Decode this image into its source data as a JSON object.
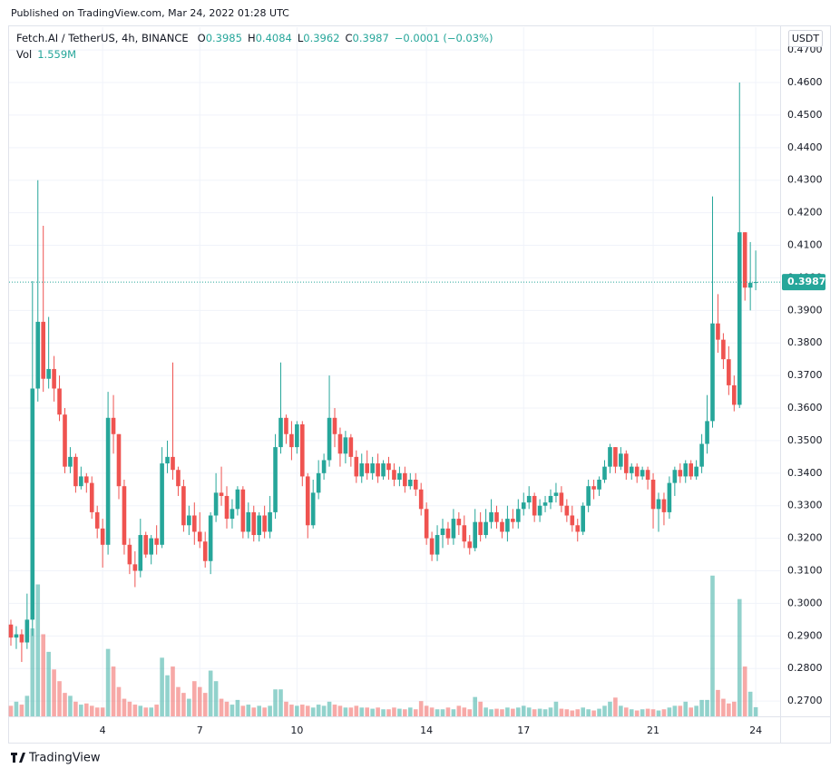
{
  "header": {
    "published": "Published on TradingView.com, Mar 24, 2022 01:28 UTC",
    "symbol": "Fetch.AI / TetherUS, 4h, BINANCE",
    "ohlc": [
      {
        "key": "O",
        "value": "0.3985"
      },
      {
        "key": "H",
        "value": "0.4084"
      },
      {
        "key": "L",
        "value": "0.3962"
      },
      {
        "key": "C",
        "value": "0.3987"
      }
    ],
    "change": "−0.0001 (−0.03%)",
    "vol_key": "Vol",
    "vol_label": "1.559M",
    "currency": "USDT",
    "logo": "TradingView"
  },
  "chart_data": {
    "type": "candlestick",
    "up_color": "#26a69a",
    "down_color": "#ef5350",
    "grid": true,
    "ylim": [
      0.2653,
      0.477
    ],
    "yticks": [
      {
        "value": 0.27,
        "label": "0.2700"
      },
      {
        "value": 0.28,
        "label": "0.2800"
      },
      {
        "value": 0.29,
        "label": "0.2900"
      },
      {
        "value": 0.3,
        "label": "0.3000"
      },
      {
        "value": 0.31,
        "label": "0.3100"
      },
      {
        "value": 0.32,
        "label": "0.3200"
      },
      {
        "value": 0.33,
        "label": "0.3300"
      },
      {
        "value": 0.34,
        "label": "0.3400"
      },
      {
        "value": 0.35,
        "label": "0.3500"
      },
      {
        "value": 0.36,
        "label": "0.3600"
      },
      {
        "value": 0.37,
        "label": "0.3700"
      },
      {
        "value": 0.38,
        "label": "0.3800"
      },
      {
        "value": 0.39,
        "label": "0.3900"
      },
      {
        "value": 0.4,
        "label": "0.4000"
      },
      {
        "value": 0.41,
        "label": "0.4100"
      },
      {
        "value": 0.42,
        "label": "0.4200"
      },
      {
        "value": 0.43,
        "label": "0.4300"
      },
      {
        "value": 0.44,
        "label": "0.4400"
      },
      {
        "value": 0.45,
        "label": "0.4500"
      },
      {
        "value": 0.46,
        "label": "0.4600"
      },
      {
        "value": 0.47,
        "label": "0.4700"
      }
    ],
    "vlim": [
      0,
      30
    ],
    "last_price": {
      "value": 0.3987,
      "label": "0.3987"
    },
    "categories": [
      null,
      null,
      null,
      null,
      null,
      null,
      null,
      null,
      null,
      null,
      null,
      null,
      null,
      null,
      null,
      null,
      null,
      "4",
      null,
      null,
      null,
      null,
      null,
      null,
      null,
      null,
      null,
      null,
      null,
      null,
      null,
      null,
      null,
      null,
      null,
      "7",
      null,
      null,
      null,
      null,
      null,
      null,
      null,
      null,
      null,
      null,
      null,
      null,
      null,
      null,
      null,
      null,
      null,
      "10",
      null,
      null,
      null,
      null,
      null,
      null,
      null,
      null,
      null,
      null,
      null,
      null,
      null,
      null,
      null,
      null,
      null,
      null,
      null,
      null,
      null,
      null,
      null,
      "14",
      null,
      null,
      null,
      null,
      null,
      null,
      null,
      null,
      null,
      null,
      null,
      null,
      null,
      null,
      null,
      null,
      null,
      "17",
      null,
      null,
      null,
      null,
      null,
      null,
      null,
      null,
      null,
      null,
      null,
      null,
      null,
      null,
      null,
      null,
      null,
      null,
      null,
      null,
      null,
      null,
      null,
      "21",
      null,
      null,
      null,
      null,
      null,
      null,
      null,
      null,
      null,
      null,
      null,
      null,
      null,
      null,
      null,
      null,
      null,
      null,
      "24"
    ],
    "open": [
      0.2935,
      0.2895,
      0.2905,
      0.288,
      0.295,
      0.366,
      0.3865,
      0.369,
      0.372,
      0.366,
      0.358,
      0.342,
      0.345,
      0.336,
      0.339,
      0.337,
      0.328,
      0.323,
      0.318,
      0.357,
      0.352,
      0.336,
      0.318,
      0.312,
      0.31,
      0.321,
      0.315,
      0.32,
      0.318,
      0.343,
      0.345,
      0.341,
      0.336,
      0.324,
      0.327,
      0.322,
      0.319,
      0.313,
      0.327,
      0.334,
      0.333,
      0.326,
      0.329,
      0.335,
      0.322,
      0.328,
      0.321,
      0.327,
      0.322,
      0.328,
      0.348,
      0.357,
      0.352,
      0.348,
      0.355,
      0.339,
      0.324,
      0.334,
      0.34,
      0.344,
      0.357,
      0.352,
      0.346,
      0.351,
      0.345,
      0.339,
      0.343,
      0.34,
      0.343,
      0.339,
      0.343,
      0.341,
      0.338,
      0.34,
      0.336,
      0.338,
      0.335,
      0.329,
      0.32,
      0.315,
      0.321,
      0.323,
      0.32,
      0.326,
      0.324,
      0.319,
      0.317,
      0.325,
      0.321,
      0.325,
      0.328,
      0.325,
      0.322,
      0.326,
      0.325,
      0.329,
      0.331,
      0.333,
      0.327,
      0.33,
      0.331,
      0.333,
      0.334,
      0.33,
      0.327,
      0.324,
      0.322,
      0.33,
      0.336,
      0.335,
      0.338,
      0.342,
      0.348,
      0.342,
      0.346,
      0.34,
      0.342,
      0.339,
      0.341,
      0.338,
      0.329,
      0.332,
      0.328,
      0.337,
      0.341,
      0.339,
      0.343,
      0.339,
      0.342,
      0.349,
      0.356,
      0.386,
      0.381,
      0.375,
      0.367,
      0.361,
      0.414,
      0.397,
      0.3985
    ],
    "high": [
      0.295,
      0.293,
      0.292,
      0.303,
      0.399,
      0.43,
      0.416,
      0.388,
      0.376,
      0.37,
      0.36,
      0.348,
      0.346,
      0.342,
      0.34,
      0.339,
      0.33,
      0.326,
      0.365,
      0.364,
      0.352,
      0.338,
      0.32,
      0.316,
      0.326,
      0.322,
      0.321,
      0.324,
      0.348,
      0.35,
      0.374,
      0.342,
      0.338,
      0.33,
      0.331,
      0.328,
      0.322,
      0.328,
      0.34,
      0.342,
      0.336,
      0.332,
      0.336,
      0.336,
      0.331,
      0.33,
      0.328,
      0.33,
      0.333,
      0.352,
      0.374,
      0.358,
      0.356,
      0.356,
      0.356,
      0.34,
      0.338,
      0.344,
      0.346,
      0.37,
      0.36,
      0.354,
      0.353,
      0.352,
      0.347,
      0.346,
      0.347,
      0.345,
      0.346,
      0.344,
      0.345,
      0.343,
      0.342,
      0.342,
      0.34,
      0.34,
      0.337,
      0.331,
      0.322,
      0.324,
      0.326,
      0.325,
      0.329,
      0.328,
      0.327,
      0.321,
      0.329,
      0.328,
      0.329,
      0.332,
      0.33,
      0.326,
      0.33,
      0.329,
      0.332,
      0.334,
      0.336,
      0.334,
      0.332,
      0.333,
      0.335,
      0.337,
      0.336,
      0.332,
      0.33,
      0.326,
      0.331,
      0.338,
      0.338,
      0.339,
      0.344,
      0.349,
      0.348,
      0.348,
      0.347,
      0.343,
      0.343,
      0.342,
      0.342,
      0.34,
      0.334,
      0.334,
      0.339,
      0.342,
      0.343,
      0.344,
      0.344,
      0.344,
      0.352,
      0.364,
      0.425,
      0.395,
      0.383,
      0.379,
      0.37,
      0.46,
      0.414,
      0.411,
      0.4084
    ],
    "low": [
      0.287,
      0.286,
      0.282,
      0.286,
      0.29,
      0.362,
      0.365,
      0.366,
      0.362,
      0.356,
      0.34,
      0.34,
      0.334,
      0.335,
      0.334,
      0.326,
      0.32,
      0.311,
      0.315,
      0.346,
      0.332,
      0.315,
      0.309,
      0.305,
      0.308,
      0.314,
      0.312,
      0.315,
      0.317,
      0.34,
      0.338,
      0.333,
      0.322,
      0.321,
      0.318,
      0.317,
      0.311,
      0.309,
      0.325,
      0.33,
      0.323,
      0.323,
      0.327,
      0.32,
      0.32,
      0.319,
      0.319,
      0.32,
      0.32,
      0.326,
      0.346,
      0.349,
      0.344,
      0.346,
      0.336,
      0.32,
      0.323,
      0.332,
      0.338,
      0.342,
      0.348,
      0.342,
      0.343,
      0.342,
      0.337,
      0.337,
      0.338,
      0.338,
      0.337,
      0.338,
      0.338,
      0.336,
      0.336,
      0.334,
      0.335,
      0.333,
      0.327,
      0.318,
      0.313,
      0.313,
      0.317,
      0.318,
      0.318,
      0.321,
      0.317,
      0.315,
      0.316,
      0.319,
      0.32,
      0.323,
      0.323,
      0.32,
      0.319,
      0.323,
      0.323,
      0.327,
      0.329,
      0.325,
      0.325,
      0.328,
      0.329,
      0.331,
      0.328,
      0.325,
      0.322,
      0.319,
      0.321,
      0.328,
      0.332,
      0.333,
      0.337,
      0.34,
      0.34,
      0.341,
      0.338,
      0.338,
      0.337,
      0.338,
      0.335,
      0.323,
      0.322,
      0.324,
      0.326,
      0.333,
      0.337,
      0.337,
      0.338,
      0.338,
      0.34,
      0.346,
      0.354,
      0.377,
      0.372,
      0.364,
      0.359,
      0.36,
      0.393,
      0.39,
      0.3962
    ],
    "close": [
      0.2895,
      0.2905,
      0.288,
      0.295,
      0.366,
      0.3865,
      0.369,
      0.372,
      0.366,
      0.358,
      0.342,
      0.345,
      0.336,
      0.339,
      0.337,
      0.328,
      0.323,
      0.318,
      0.357,
      0.352,
      0.336,
      0.318,
      0.312,
      0.31,
      0.321,
      0.315,
      0.32,
      0.318,
      0.343,
      0.345,
      0.341,
      0.336,
      0.324,
      0.327,
      0.322,
      0.319,
      0.313,
      0.327,
      0.334,
      0.333,
      0.326,
      0.329,
      0.335,
      0.322,
      0.328,
      0.321,
      0.327,
      0.322,
      0.328,
      0.348,
      0.357,
      0.352,
      0.348,
      0.355,
      0.339,
      0.324,
      0.334,
      0.34,
      0.344,
      0.357,
      0.352,
      0.346,
      0.351,
      0.345,
      0.339,
      0.343,
      0.34,
      0.343,
      0.339,
      0.343,
      0.341,
      0.338,
      0.34,
      0.336,
      0.338,
      0.335,
      0.329,
      0.32,
      0.315,
      0.321,
      0.323,
      0.32,
      0.326,
      0.324,
      0.319,
      0.317,
      0.325,
      0.321,
      0.325,
      0.328,
      0.325,
      0.322,
      0.326,
      0.325,
      0.329,
      0.331,
      0.333,
      0.327,
      0.33,
      0.331,
      0.333,
      0.334,
      0.33,
      0.327,
      0.324,
      0.322,
      0.33,
      0.336,
      0.335,
      0.338,
      0.342,
      0.348,
      0.342,
      0.346,
      0.34,
      0.342,
      0.339,
      0.341,
      0.338,
      0.329,
      0.332,
      0.328,
      0.337,
      0.341,
      0.339,
      0.343,
      0.339,
      0.342,
      0.349,
      0.356,
      0.386,
      0.381,
      0.375,
      0.367,
      0.361,
      0.414,
      0.397,
      0.3985,
      0.3987
    ],
    "volume": [
      1.8,
      2.5,
      2.0,
      3.5,
      15,
      22.5,
      14,
      11,
      8,
      6,
      4,
      3.5,
      2.5,
      2,
      2.2,
      1.8,
      1.5,
      1.5,
      11.5,
      8.5,
      5,
      3,
      2.5,
      2,
      1.8,
      1.5,
      1.5,
      2,
      10,
      7,
      8.5,
      5,
      4,
      3,
      6,
      5,
      4,
      7.8,
      6,
      3,
      2.5,
      2,
      2.8,
      1.8,
      2,
      1.5,
      1.8,
      1.5,
      1.8,
      4.6,
      4.6,
      2.5,
      2,
      1.8,
      2,
      1.8,
      1.5,
      2,
      1.8,
      2.5,
      2,
      1.8,
      1.5,
      1.5,
      1.8,
      1.5,
      1.5,
      1.3,
      1.5,
      1.2,
      1.2,
      1.5,
      1.3,
      1.2,
      1.5,
      1.2,
      2.6,
      1.8,
      1.5,
      1.2,
      1.2,
      1.5,
      1.2,
      1.8,
      1.5,
      1.2,
      3.3,
      2.5,
      1.5,
      1.2,
      1.3,
      1.2,
      1.5,
      1.3,
      1.5,
      1.8,
      1.5,
      1.2,
      1.3,
      1.2,
      1.5,
      2.5,
      1.3,
      1.2,
      1.0,
      1.2,
      1.5,
      1.2,
      1.0,
      1.3,
      1.8,
      2.5,
      3.2,
      1.8,
      1.5,
      1.2,
      1.0,
      1.2,
      1.3,
      1.2,
      1.0,
      1.2,
      1.5,
      1.8,
      1.8,
      2.5,
      1.5,
      1.8,
      2.8,
      2.8,
      24,
      4.5,
      3,
      2.2,
      2.5,
      20,
      8.5,
      4.2,
      1.559
    ]
  }
}
